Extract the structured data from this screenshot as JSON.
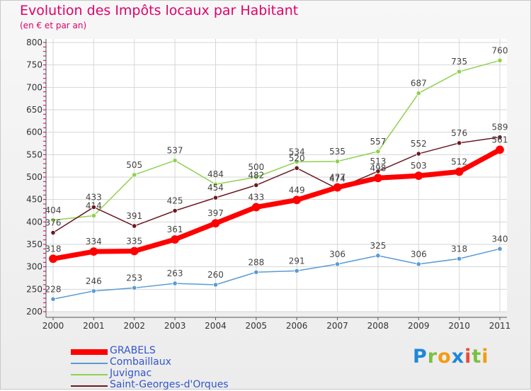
{
  "title": "Evolution des Impôts locaux par Habitant",
  "subtitle": "(en € et par an)",
  "logo_text": "Proxiti",
  "chart_data": {
    "type": "line",
    "title": "Evolution des Impôts locaux par Habitant",
    "subtitle": "(en € et par an)",
    "xlabel": "",
    "ylabel": "",
    "ylim": [
      200,
      800
    ],
    "yticks": [
      "200",
      "250",
      "300",
      "350",
      "400",
      "450",
      "500",
      "550",
      "600",
      "650",
      "700",
      "750",
      "800"
    ],
    "x": [
      "2000",
      "2001",
      "2002",
      "2003",
      "2004",
      "2005",
      "2006",
      "2007",
      "2008",
      "2009",
      "2010",
      "2011"
    ],
    "series": [
      {
        "name": "Combaillaux",
        "color": "#5a9bd4",
        "values": [
          228,
          246,
          253,
          263,
          260,
          288,
          291,
          306,
          325,
          306,
          318,
          340
        ]
      },
      {
        "name": "Juvignac",
        "color": "#8fd14f",
        "values": [
          404,
          414,
          505,
          537,
          484,
          500,
          534,
          535,
          557,
          687,
          735,
          760
        ]
      },
      {
        "name": "Saint-Georges-d'Orques",
        "color": "#6b1a22",
        "values": [
          376,
          433,
          391,
          425,
          454,
          482,
          520,
          474,
          513,
          552,
          576,
          589
        ]
      },
      {
        "name": "GRABELS",
        "color": "#ff0000",
        "values": [
          318,
          334,
          335,
          361,
          397,
          433,
          449,
          477,
          498,
          503,
          512,
          561
        ]
      }
    ],
    "legend": [
      {
        "name": "GRABELS",
        "color": "#ff0000"
      },
      {
        "name": "Combaillaux",
        "color": "#5a9bd4"
      },
      {
        "name": "Juvignac",
        "color": "#8fd14f"
      },
      {
        "name": "Saint-Georges-d'Orques",
        "color": "#6b1a22"
      }
    ],
    "legend_position": "bottom-left",
    "grid": true
  }
}
